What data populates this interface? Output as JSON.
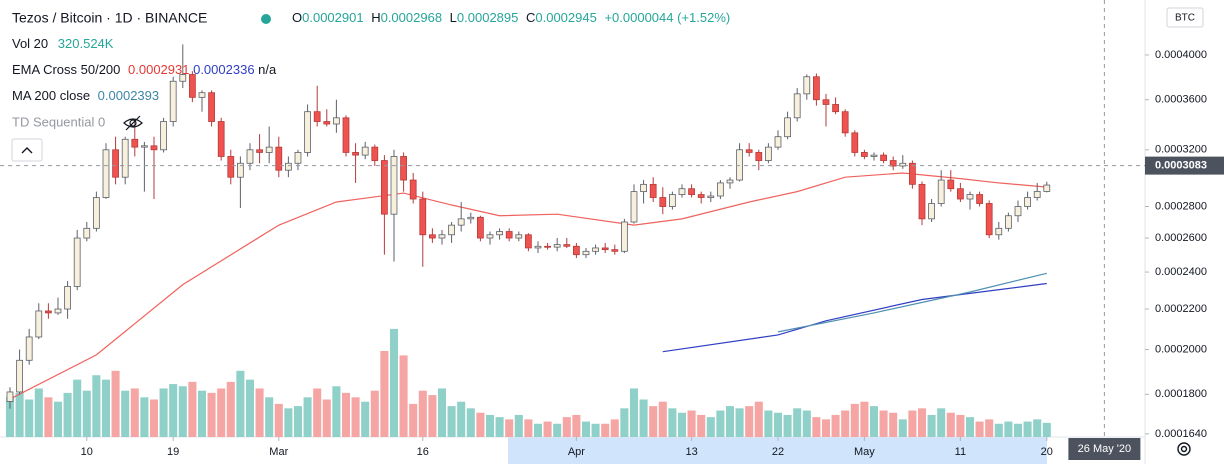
{
  "chart_data": {
    "type": "candlestick",
    "title": "Tezos / Bitcoin · 1D · BINANCE",
    "ohlc_labels": [
      "O",
      "H",
      "L",
      "C"
    ],
    "change": {
      "abs": "+0.0000044",
      "pct": "(+1.52%)"
    },
    "currency": "BTC",
    "log_scale": true,
    "grid": false,
    "up_color": "#f6f0dc",
    "down_color": "#ef5350",
    "volume_up_color": "#8fd0c8",
    "volume_down_color": "#f5a6a4",
    "xlim": [
      -1.04,
      118.23
    ],
    "ylim": [
      0.0001628,
      0.0004552
    ],
    "volume_ylim": [
      0,
      3400000
    ],
    "yticks": [
      {
        "value": 0.0004,
        "label": "0.0004000"
      },
      {
        "value": 0.00036,
        "label": "0.0003600"
      },
      {
        "value": 0.00032,
        "label": "0.0003200"
      },
      {
        "value": 0.00028,
        "label": "0.0002800"
      },
      {
        "value": 0.00026,
        "label": "0.0002600"
      },
      {
        "value": 0.00024,
        "label": "0.0002400"
      },
      {
        "value": 0.00022,
        "label": "0.0002200"
      },
      {
        "value": 0.0002,
        "label": "0.0002000"
      },
      {
        "value": 0.00018,
        "label": "0.0001800"
      },
      {
        "value": 0.000164,
        "label": "0.0001640"
      }
    ],
    "xticks": [
      {
        "value": 8,
        "label": "10"
      },
      {
        "value": 17,
        "label": "19"
      },
      {
        "value": 28,
        "label": "Mar"
      },
      {
        "value": 43,
        "label": "16"
      },
      {
        "value": 59,
        "label": "Apr"
      },
      {
        "value": 71,
        "label": "13"
      },
      {
        "value": 80,
        "label": "22"
      },
      {
        "value": 89,
        "label": "May"
      },
      {
        "value": 99,
        "label": "11"
      },
      {
        "value": 108,
        "label": "20"
      }
    ],
    "crosshair": {
      "x": {
        "value": 114,
        "label": "26 May '20"
      },
      "y": 0.0003083
    },
    "volume_indicator": {
      "name": "Vol 20",
      "value": 320524,
      "label": "320.524K"
    },
    "td_label": "TD Sequential 0",
    "indicators": [
      {
        "name": "EMA Cross 50/200",
        "extra": "n/a",
        "lines": [
          {
            "color": "#f0625e",
            "x": [
              0,
              9,
              18,
              28,
              34,
              41,
              46,
              51,
              57,
              65,
              70,
              77,
              82,
              87,
              93,
              99,
              103,
              108
            ],
            "values": [
              0.000178,
              0.0001975,
              0.000233,
              0.000268,
              0.000283,
              0.000289,
              0.000281,
              0.000274,
              0.000275,
              0.000268,
              0.000272,
              0.000283,
              0.00029,
              0.0003,
              0.000303,
              0.000299,
              0.000296,
              0.0002931
            ]
          },
          {
            "color": "#2f3ec2",
            "x": [
              68,
              80,
              85,
              95,
              108
            ],
            "values": [
              0.000199,
              0.000207,
              0.000214,
              0.000225,
              0.0002336
            ]
          }
        ]
      },
      {
        "name": "MA 200 close",
        "lines": [
          {
            "color": "#4f8fb0",
            "x": [
              80,
              90,
              100,
              108
            ],
            "values": [
              0.0002085,
              0.000218,
              0.000229,
              0.0002393
            ]
          }
        ]
      }
    ],
    "candles": [
      [
        0.000177,
        0.000183,
        0.000174,
        0.000181
      ],
      [
        0.000181,
        0.0002,
        0.00018,
        0.000195
      ],
      [
        0.000195,
        0.00021,
        0.000193,
        0.000206
      ],
      [
        0.000206,
        0.000223,
        0.000205,
        0.000219
      ],
      [
        0.000219,
        0.000223,
        0.000215,
        0.000218
      ],
      [
        0.000218,
        0.000226,
        0.000217,
        0.00022
      ],
      [
        0.00022,
        0.000235,
        0.000215,
        0.000232
      ],
      [
        0.000232,
        0.000265,
        0.00023,
        0.00026
      ],
      [
        0.00026,
        0.00027,
        0.000258,
        0.000266
      ],
      [
        0.000266,
        0.00029,
        0.000264,
        0.000286
      ],
      [
        0.000286,
        0.000325,
        0.000285,
        0.00032
      ],
      [
        0.00032,
        0.00033,
        0.000295,
        0.0003
      ],
      [
        0.0003,
        0.00033,
        0.000295,
        0.000328
      ],
      [
        0.000328,
        0.000342,
        0.000315,
        0.000322
      ],
      [
        0.000322,
        0.000326,
        0.00029,
        0.000323
      ],
      [
        0.000323,
        0.00033,
        0.000285,
        0.00032
      ],
      [
        0.00032,
        0.000345,
        0.000318,
        0.000342
      ],
      [
        0.000342,
        0.00038,
        0.000338,
        0.000376
      ],
      [
        0.000376,
        0.00041,
        0.00037,
        0.000382
      ],
      [
        0.000382,
        0.000385,
        0.000358,
        0.000362
      ],
      [
        0.000362,
        0.000368,
        0.00035,
        0.000366
      ],
      [
        0.000366,
        0.000368,
        0.000338,
        0.000342
      ],
      [
        0.000342,
        0.000345,
        0.000312,
        0.000315
      ],
      [
        0.000315,
        0.00032,
        0.000295,
        0.0003
      ],
      [
        0.0003,
        0.000315,
        0.000279,
        0.00031
      ],
      [
        0.00031,
        0.000325,
        0.000305,
        0.00032
      ],
      [
        0.00032,
        0.000332,
        0.00031,
        0.000318
      ],
      [
        0.000318,
        0.000338,
        0.00031,
        0.000322
      ],
      [
        0.000322,
        0.00033,
        0.0003,
        0.000305
      ],
      [
        0.000305,
        0.000315,
        0.0003,
        0.00031
      ],
      [
        0.00031,
        0.00032,
        0.000305,
        0.000318
      ],
      [
        0.000318,
        0.000356,
        0.000315,
        0.00035
      ],
      [
        0.00035,
        0.000372,
        0.000338,
        0.000342
      ],
      [
        0.000342,
        0.000352,
        0.000338,
        0.00034
      ],
      [
        0.00034,
        0.00036,
        0.000333,
        0.000345
      ],
      [
        0.000345,
        0.000347,
        0.000315,
        0.000318
      ],
      [
        0.000318,
        0.000325,
        0.000296,
        0.000316
      ],
      [
        0.000316,
        0.000326,
        0.000313,
        0.000322
      ],
      [
        0.000322,
        0.000324,
        0.000308,
        0.000312
      ],
      [
        0.000312,
        0.000316,
        0.00025,
        0.000275
      ],
      [
        0.000275,
        0.00032,
        0.000246,
        0.000315
      ],
      [
        0.000315,
        0.000318,
        0.00029,
        0.000298
      ],
      [
        0.000298,
        0.000303,
        0.000282,
        0.000285
      ],
      [
        0.000285,
        0.00029,
        0.000243,
        0.000262
      ],
      [
        0.000262,
        0.000266,
        0.000257,
        0.00026
      ],
      [
        0.00026,
        0.000265,
        0.000256,
        0.000262
      ],
      [
        0.000262,
        0.00027,
        0.000257,
        0.000268
      ],
      [
        0.000268,
        0.000283,
        0.000264,
        0.000272
      ],
      [
        0.000272,
        0.000276,
        0.000269,
        0.000273
      ],
      [
        0.000273,
        0.000274,
        0.000258,
        0.00026
      ],
      [
        0.00026,
        0.000264,
        0.000256,
        0.000262
      ],
      [
        0.000262,
        0.000266,
        0.000259,
        0.000264
      ],
      [
        0.000264,
        0.000266,
        0.000258,
        0.00026
      ],
      [
        0.00026,
        0.000264,
        0.000258,
        0.000262
      ],
      [
        0.000262,
        0.000263,
        0.000252,
        0.000254
      ],
      [
        0.000254,
        0.000258,
        0.000251,
        0.000255
      ],
      [
        0.000255,
        0.000257,
        0.000253,
        0.0002545
      ],
      [
        0.0002545,
        0.00026,
        0.000252,
        0.000256
      ],
      [
        0.000256,
        0.00026,
        0.000254,
        0.000255
      ],
      [
        0.000255,
        0.000257,
        0.000248,
        0.00025
      ],
      [
        0.00025,
        0.000254,
        0.000248,
        0.000252
      ],
      [
        0.000252,
        0.000256,
        0.00025,
        0.000254
      ],
      [
        0.000254,
        0.000257,
        0.000251,
        0.000253
      ],
      [
        0.000253,
        0.000256,
        0.00025,
        0.000252
      ],
      [
        0.000252,
        0.000272,
        0.000251,
        0.00027
      ],
      [
        0.00027,
        0.000295,
        0.000269,
        0.00029
      ],
      [
        0.00029,
        0.000298,
        0.000282,
        0.000295
      ],
      [
        0.000295,
        0.0003,
        0.000283,
        0.000286
      ],
      [
        0.000286,
        0.000293,
        0.000275,
        0.00028
      ],
      [
        0.00028,
        0.00029,
        0.000278,
        0.000288
      ],
      [
        0.000288,
        0.000295,
        0.000286,
        0.000292
      ],
      [
        0.000292,
        0.000295,
        0.000286,
        0.000288
      ],
      [
        0.000288,
        0.00029,
        0.000282,
        0.000286
      ],
      [
        0.000286,
        0.00029,
        0.000283,
        0.000287
      ],
      [
        0.000287,
        0.000298,
        0.000285,
        0.000296
      ],
      [
        0.000296,
        0.0003,
        0.000292,
        0.000298
      ],
      [
        0.000298,
        0.000325,
        0.000297,
        0.00032
      ],
      [
        0.00032,
        0.000325,
        0.000315,
        0.000318
      ],
      [
        0.000318,
        0.00032,
        0.000305,
        0.000312
      ],
      [
        0.000312,
        0.000325,
        0.00031,
        0.000322
      ],
      [
        0.000322,
        0.000335,
        0.00032,
        0.00033
      ],
      [
        0.00033,
        0.00035,
        0.000328,
        0.000345
      ],
      [
        0.000345,
        0.00037,
        0.000342,
        0.000365
      ],
      [
        0.000365,
        0.000382,
        0.00036,
        0.00038
      ],
      [
        0.00038,
        0.000383,
        0.000355,
        0.00036
      ],
      [
        0.00036,
        0.000365,
        0.000338,
        0.000356
      ],
      [
        0.000356,
        0.000362,
        0.000348,
        0.00035
      ],
      [
        0.00035,
        0.000352,
        0.00033,
        0.000333
      ],
      [
        0.000333,
        0.000335,
        0.000315,
        0.000318
      ],
      [
        0.000318,
        0.00032,
        0.000313,
        0.000315
      ],
      [
        0.000315,
        0.000318,
        0.000312,
        0.000316
      ],
      [
        0.000316,
        0.000318,
        0.00031,
        0.000312
      ],
      [
        0.000312,
        0.000315,
        0.000305,
        0.000308
      ],
      [
        0.000308,
        0.000316,
        0.000306,
        0.00031
      ],
      [
        0.00031,
        0.000312,
        0.000292,
        0.000295
      ],
      [
        0.000295,
        0.000297,
        0.000268,
        0.000272
      ],
      [
        0.000272,
        0.000285,
        0.00027,
        0.000282
      ],
      [
        0.000282,
        0.000305,
        0.00028,
        0.000298
      ],
      [
        0.000298,
        0.000305,
        0.00029,
        0.000292
      ],
      [
        0.000292,
        0.000296,
        0.000283,
        0.000285
      ],
      [
        0.000285,
        0.00029,
        0.000278,
        0.000288
      ],
      [
        0.000288,
        0.00029,
        0.00028,
        0.000282
      ],
      [
        0.000282,
        0.000284,
        0.00026,
        0.000262
      ],
      [
        0.000262,
        0.00027,
        0.000259,
        0.000266
      ],
      [
        0.000266,
        0.000276,
        0.000264,
        0.000274
      ],
      [
        0.000274,
        0.000284,
        0.00027,
        0.00028
      ],
      [
        0.00028,
        0.00029,
        0.000278,
        0.000286
      ],
      [
        0.000286,
        0.000296,
        0.000284,
        0.0002901
      ],
      [
        0.0002901,
        0.0002968,
        0.0002895,
        0.0002945
      ]
    ],
    "volume": [
      900000,
      1000000,
      850000,
      1100000,
      900000,
      800000,
      1000000,
      1300000,
      1050000,
      1400000,
      1300000,
      1500000,
      1050000,
      1100000,
      900000,
      850000,
      1100000,
      1200000,
      1150000,
      1250000,
      1050000,
      1000000,
      1100000,
      1250000,
      1500000,
      1300000,
      1100000,
      900000,
      750000,
      650000,
      700000,
      900000,
      1100000,
      850000,
      1150000,
      1000000,
      900000,
      800000,
      1050000,
      1950000,
      2450000,
      1850000,
      750000,
      1050000,
      950000,
      1100000,
      700000,
      800000,
      650000,
      550000,
      500000,
      450000,
      400000,
      500000,
      400000,
      300000,
      350000,
      300000,
      450000,
      500000,
      350000,
      300000,
      300000,
      400000,
      650000,
      1100000,
      850000,
      700000,
      800000,
      650000,
      550000,
      600000,
      500000,
      450000,
      600000,
      700000,
      650000,
      700000,
      800000,
      600000,
      550000,
      500000,
      650000,
      600000,
      450000,
      400000,
      500000,
      600000,
      750000,
      800000,
      700000,
      600000,
      550000,
      400000,
      600000,
      650000,
      500000,
      650000,
      550000,
      500000,
      450000,
      350000,
      400000,
      300000,
      350000,
      300000,
      350000,
      400000,
      320524
    ]
  }
}
